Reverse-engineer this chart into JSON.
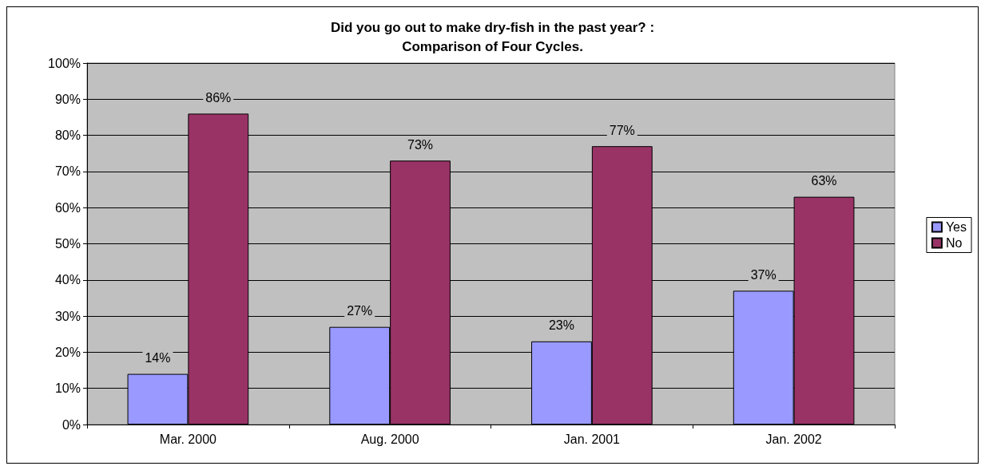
{
  "chart_data": {
    "type": "bar",
    "title": "Did you go out to make dry-fish in the past year? :\nComparison of Four Cycles.",
    "categories": [
      "Mar. 2000",
      "Aug. 2000",
      "Jan. 2001",
      "Jan. 2002"
    ],
    "series": [
      {
        "name": "Yes",
        "color": "#9999ff",
        "values": [
          14,
          27,
          23,
          37
        ],
        "value_labels": [
          "14%",
          "27%",
          "23%",
          "37%"
        ]
      },
      {
        "name": "No",
        "color": "#993366",
        "values": [
          86,
          73,
          77,
          63
        ],
        "value_labels": [
          "86%",
          "73%",
          "77%",
          "63%"
        ]
      }
    ],
    "ylim": [
      0,
      100
    ],
    "yticks": [
      {
        "value": 0,
        "label": "0%"
      },
      {
        "value": 10,
        "label": "10%"
      },
      {
        "value": 20,
        "label": "20%"
      },
      {
        "value": 30,
        "label": "30%"
      },
      {
        "value": 40,
        "label": "40%"
      },
      {
        "value": 50,
        "label": "50%"
      },
      {
        "value": 60,
        "label": "60%"
      },
      {
        "value": 70,
        "label": "70%"
      },
      {
        "value": 80,
        "label": "80%"
      },
      {
        "value": 90,
        "label": "90%"
      },
      {
        "value": 100,
        "label": "100%"
      }
    ],
    "grid": "y",
    "legend": "right"
  }
}
